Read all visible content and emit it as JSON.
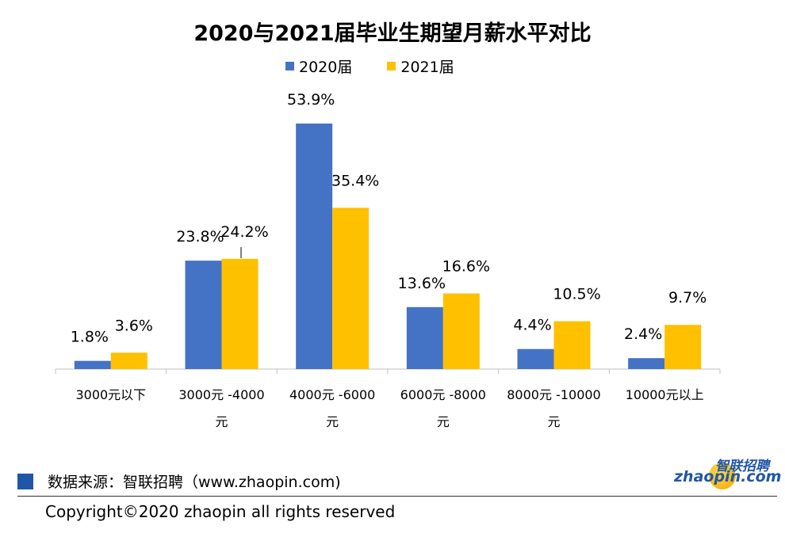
{
  "chart_data": {
    "type": "bar",
    "title": "2020与2021届毕业生期望月薪水平对比",
    "categories": [
      "3000元以下",
      "3000元 -4000元",
      "4000元 -6000元",
      "6000元 -8000元",
      "8000元 -10000元",
      "10000元以上"
    ],
    "category_lines": [
      [
        "3000元以下"
      ],
      [
        "3000元 -4000",
        "元"
      ],
      [
        "4000元 -6000",
        "元"
      ],
      [
        "6000元 -8000",
        "元"
      ],
      [
        "8000元 -10000",
        "元"
      ],
      [
        "10000元以上"
      ]
    ],
    "series": [
      {
        "name": "2020届",
        "color": "#4472c4",
        "values": [
          1.8,
          23.8,
          53.9,
          13.6,
          4.4,
          2.4
        ],
        "labels": [
          "1.8%",
          "23.8%",
          "53.9%",
          "13.6%",
          "4.4%",
          "2.4%"
        ]
      },
      {
        "name": "2021届",
        "color": "#ffc000",
        "values": [
          3.6,
          24.2,
          35.4,
          16.6,
          10.5,
          9.7
        ],
        "labels": [
          "3.6%",
          "24.2%",
          "35.4%",
          "16.6%",
          "10.5%",
          "9.7%"
        ]
      }
    ],
    "ylim": [
      0,
      60
    ],
    "legend_position": "top",
    "grid": false
  },
  "footer": {
    "source": "数据来源：智联招聘（www.zhaopin.com)",
    "copyright": "Copyright©2020 zhaopin all rights reserved",
    "logo_cn": "智联招聘",
    "logo_en": "zhaopin.com",
    "source_marker_color": "#1f56a8"
  }
}
